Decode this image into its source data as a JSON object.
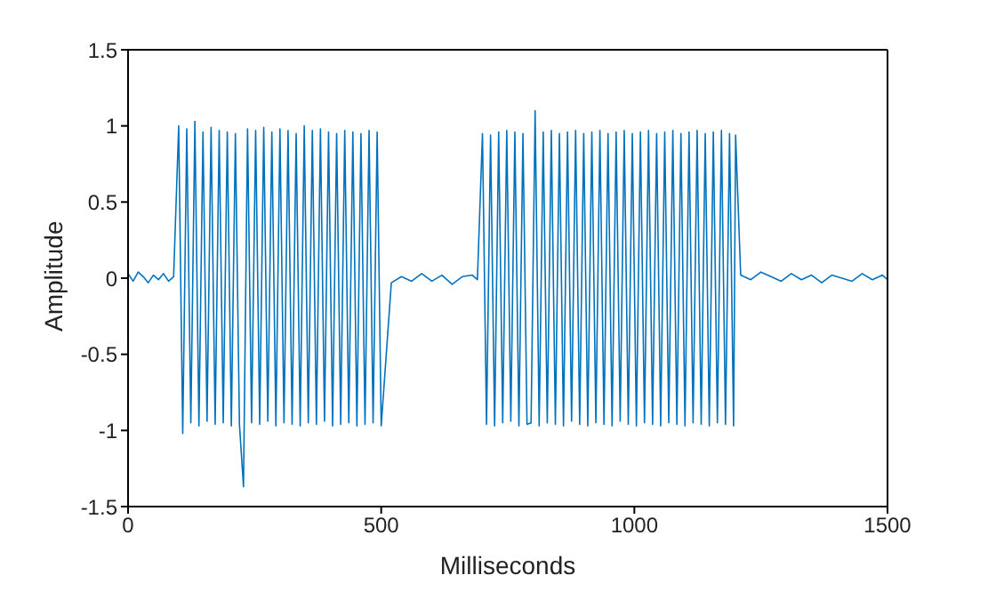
{
  "chart_data": {
    "type": "line",
    "xlabel": "Milliseconds",
    "ylabel": "Amplitude",
    "xlim": [
      0,
      1500
    ],
    "xticks": [
      0,
      500,
      1000,
      1500
    ],
    "ylim": [
      -1.5,
      1.5
    ],
    "yticks": [
      -1.5,
      -1,
      -0.5,
      0,
      0.5,
      1,
      1.5
    ],
    "grid": false,
    "legend": false,
    "marker": "none",
    "line_style": "solid",
    "series": [
      {
        "color": "#0072bd",
        "x": [
          0,
          10,
          20,
          30,
          40,
          50,
          60,
          70,
          80,
          90,
          100,
          108,
          116,
          124,
          132,
          140,
          148,
          156,
          164,
          172,
          180,
          188,
          196,
          204,
          212,
          220,
          228,
          236,
          244,
          252,
          260,
          268,
          276,
          284,
          292,
          300,
          308,
          316,
          324,
          332,
          340,
          348,
          356,
          364,
          372,
          380,
          388,
          396,
          404,
          412,
          420,
          428,
          436,
          444,
          452,
          460,
          468,
          476,
          484,
          492,
          500,
          520,
          540,
          560,
          580,
          600,
          620,
          640,
          660,
          680,
          690,
          700,
          708,
          716,
          724,
          732,
          740,
          748,
          756,
          764,
          772,
          780,
          788,
          796,
          804,
          812,
          820,
          828,
          836,
          844,
          852,
          860,
          868,
          876,
          884,
          892,
          900,
          908,
          916,
          924,
          932,
          940,
          948,
          956,
          964,
          972,
          980,
          988,
          996,
          1004,
          1012,
          1020,
          1028,
          1036,
          1044,
          1052,
          1060,
          1068,
          1076,
          1084,
          1092,
          1100,
          1108,
          1116,
          1124,
          1132,
          1140,
          1148,
          1156,
          1164,
          1172,
          1180,
          1188,
          1196,
          1200,
          1210,
          1230,
          1250,
          1270,
          1290,
          1310,
          1330,
          1350,
          1370,
          1390,
          1410,
          1430,
          1450,
          1470,
          1490,
          1500
        ],
        "values": [
          0.03,
          -0.02,
          0.04,
          0.01,
          -0.03,
          0.02,
          -0.01,
          0.03,
          -0.02,
          0.01,
          1.0,
          -1.02,
          0.98,
          -0.95,
          1.03,
          -0.97,
          0.96,
          -0.94,
          0.99,
          -0.96,
          0.97,
          -0.95,
          0.96,
          -0.97,
          0.95,
          -0.96,
          -1.37,
          0.98,
          -0.95,
          0.97,
          -0.96,
          0.99,
          -0.94,
          0.96,
          -0.97,
          0.98,
          -0.95,
          0.97,
          -0.96,
          0.95,
          -0.97,
          1.0,
          -0.95,
          0.97,
          -0.96,
          0.98,
          -0.94,
          0.96,
          -0.97,
          0.95,
          -0.96,
          0.97,
          -0.95,
          0.96,
          -0.97,
          0.95,
          -0.96,
          0.97,
          -0.95,
          0.96,
          -0.97,
          -0.03,
          0.01,
          -0.02,
          0.03,
          -0.02,
          0.02,
          -0.04,
          0.01,
          0.02,
          -0.01,
          0.95,
          -0.96,
          0.94,
          -0.97,
          0.96,
          -0.95,
          0.97,
          -0.94,
          0.96,
          -0.97,
          0.95,
          -0.96,
          -0.95,
          1.1,
          -0.97,
          0.96,
          -0.95,
          0.97,
          -0.96,
          0.95,
          -0.97,
          0.96,
          -0.94,
          0.97,
          -0.96,
          0.95,
          -0.97,
          0.96,
          -0.95,
          0.97,
          -0.96,
          0.95,
          -0.97,
          0.96,
          -0.94,
          0.97,
          -0.96,
          0.95,
          -0.97,
          0.96,
          -0.95,
          0.97,
          -0.96,
          0.95,
          -0.97,
          0.96,
          -0.95,
          0.97,
          -0.96,
          0.95,
          -0.97,
          0.96,
          -0.95,
          0.97,
          -0.96,
          0.95,
          -0.97,
          0.96,
          -0.95,
          0.97,
          -0.96,
          0.95,
          -0.97,
          0.94,
          0.02,
          -0.01,
          0.04,
          0.01,
          -0.02,
          0.03,
          -0.01,
          0.02,
          -0.03,
          0.02,
          0.0,
          -0.02,
          0.03,
          -0.01,
          0.02,
          -0.01
        ]
      }
    ]
  }
}
